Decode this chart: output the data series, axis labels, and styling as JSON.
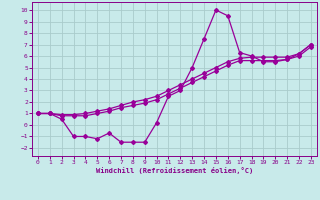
{
  "xlabel": "Windchill (Refroidissement éolien,°C)",
  "xlim": [
    -0.5,
    23.5
  ],
  "ylim": [
    -2.7,
    10.7
  ],
  "xticks": [
    0,
    1,
    2,
    3,
    4,
    5,
    6,
    7,
    8,
    9,
    10,
    11,
    12,
    13,
    14,
    15,
    16,
    17,
    18,
    19,
    20,
    21,
    22,
    23
  ],
  "yticks": [
    -2,
    -1,
    0,
    1,
    2,
    3,
    4,
    5,
    6,
    7,
    8,
    9,
    10
  ],
  "bg_color": "#c8eaea",
  "line_color": "#990099",
  "grid_color": "#aacccc",
  "line1_x": [
    0,
    1,
    2,
    3,
    4,
    5,
    6,
    7,
    8,
    9,
    10,
    11,
    12,
    13,
    14,
    15,
    16,
    17,
    18,
    19,
    20,
    21,
    22,
    23
  ],
  "line1_y": [
    1.0,
    1.0,
    0.5,
    -1.0,
    -1.0,
    -1.2,
    -0.7,
    -1.5,
    -1.5,
    -1.5,
    0.2,
    2.5,
    3.0,
    5.0,
    7.5,
    10.0,
    9.5,
    6.3,
    6.0,
    5.5,
    5.5,
    5.7,
    6.2,
    7.0
  ],
  "line2_x": [
    0,
    1,
    2,
    3,
    4,
    5,
    6,
    7,
    8,
    9,
    10,
    11,
    12,
    13,
    14,
    15,
    16,
    17,
    18,
    19,
    20,
    21,
    22,
    23
  ],
  "line2_y": [
    1.0,
    1.0,
    0.8,
    0.8,
    0.8,
    1.0,
    1.2,
    1.5,
    1.7,
    1.9,
    2.2,
    2.7,
    3.2,
    3.7,
    4.2,
    4.7,
    5.2,
    5.6,
    5.6,
    5.6,
    5.6,
    5.7,
    6.0,
    6.8
  ],
  "line3_x": [
    0,
    1,
    2,
    3,
    4,
    5,
    6,
    7,
    8,
    9,
    10,
    11,
    12,
    13,
    14,
    15,
    16,
    17,
    18,
    19,
    20,
    21,
    22,
    23
  ],
  "line3_y": [
    1.0,
    1.0,
    0.9,
    0.9,
    1.0,
    1.2,
    1.4,
    1.7,
    2.0,
    2.2,
    2.5,
    3.0,
    3.5,
    4.0,
    4.5,
    5.0,
    5.5,
    5.8,
    5.9,
    5.9,
    5.9,
    5.9,
    6.2,
    7.0
  ]
}
